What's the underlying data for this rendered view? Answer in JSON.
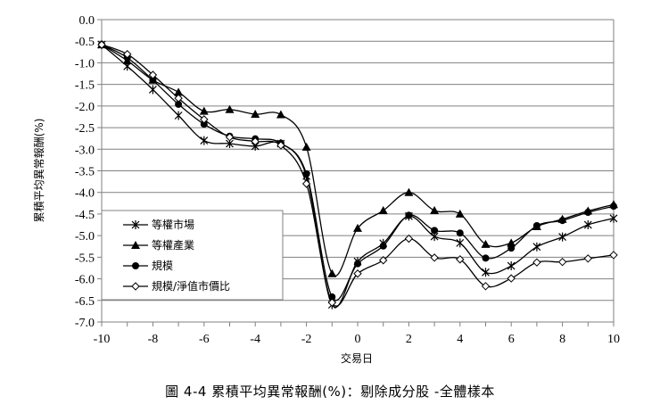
{
  "chart_data": {
    "type": "line",
    "title": "",
    "xlabel": "交易日",
    "ylabel": "累積平均異常報酬(%)",
    "x": [
      -10,
      -9,
      -8,
      -7,
      -6,
      -5,
      -4,
      -3,
      -2,
      -1,
      0,
      1,
      2,
      3,
      4,
      5,
      6,
      7,
      8,
      9,
      10
    ],
    "xticks": [
      "-10",
      "-8",
      "-6",
      "-4",
      "-2",
      "0",
      "2",
      "4",
      "6",
      "8",
      "10"
    ],
    "yticks": [
      "0.0",
      "-0.5",
      "-1.0",
      "-1.5",
      "-2.0",
      "-2.5",
      "-3.0",
      "-3.5",
      "-4.0",
      "-4.5",
      "-5.0",
      "-5.5",
      "-6.0",
      "-6.5",
      "-7.0"
    ],
    "ylim": [
      -7.0,
      0.0
    ],
    "xlim": [
      -10,
      10
    ],
    "grid": "horizontal",
    "legend_position": "bottom-left",
    "series": [
      {
        "name": "等權市場",
        "marker": "asterisk",
        "values": [
          -0.58,
          -1.08,
          -1.62,
          -2.22,
          -2.8,
          -2.87,
          -2.93,
          -2.87,
          -3.62,
          -6.6,
          -5.6,
          -5.18,
          -4.55,
          -5.02,
          -5.17,
          -5.85,
          -5.7,
          -5.26,
          -5.03,
          -4.75,
          -4.6
        ]
      },
      {
        "name": "等權產業",
        "marker": "triangle",
        "values": [
          -0.58,
          -0.95,
          -1.4,
          -1.68,
          -2.12,
          -2.08,
          -2.19,
          -2.2,
          -2.95,
          -5.88,
          -4.83,
          -4.42,
          -4.0,
          -4.42,
          -4.5,
          -5.2,
          -5.17,
          -4.79,
          -4.62,
          -4.43,
          -4.28
        ]
      },
      {
        "name": "規模",
        "marker": "circle",
        "values": [
          -0.58,
          -0.88,
          -1.4,
          -1.96,
          -2.42,
          -2.7,
          -2.76,
          -2.86,
          -3.57,
          -6.42,
          -5.65,
          -5.24,
          -4.53,
          -4.88,
          -4.94,
          -5.52,
          -5.29,
          -4.77,
          -4.65,
          -4.46,
          -4.32
        ]
      },
      {
        "name": "規模/淨值市價比",
        "marker": "open-diamond",
        "values": [
          -0.58,
          -0.8,
          -1.28,
          -1.82,
          -2.31,
          -2.72,
          -2.82,
          -2.91,
          -3.8,
          -6.55,
          -5.88,
          -5.57,
          -5.07,
          -5.51,
          -5.55,
          -6.17,
          -5.99,
          -5.62,
          -5.61,
          -5.53,
          -5.45
        ]
      }
    ]
  },
  "caption": "圖 4-4 累積平均異常報酬(%)：剔除成分股 -全體樣本",
  "colors": {
    "line": "#000000",
    "grid": "#808080",
    "frame": "#808080"
  }
}
